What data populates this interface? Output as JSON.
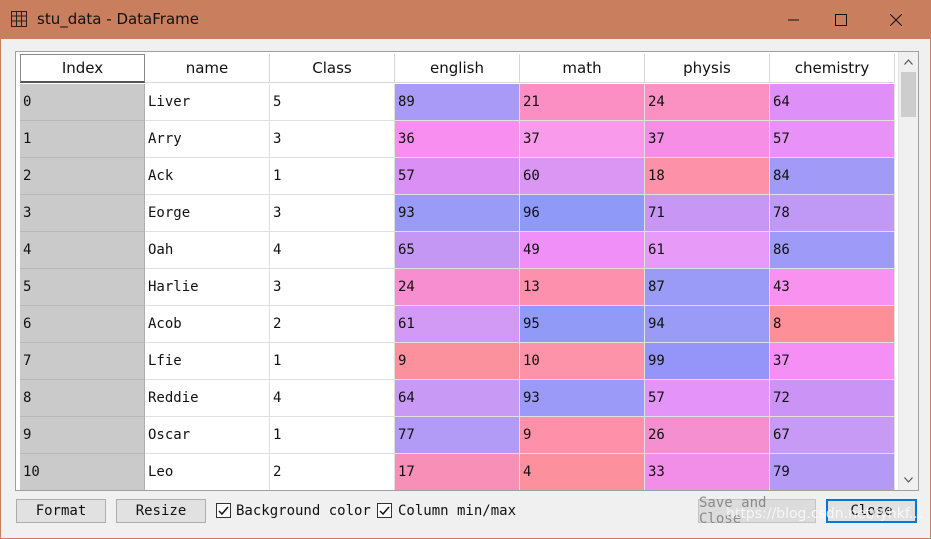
{
  "window": {
    "title": "stu_data - DataFrame",
    "title_bar_color": "#c97f5e"
  },
  "table": {
    "headers": [
      "Index",
      "name",
      "Class",
      "english",
      "math",
      "physis",
      "chemistry"
    ],
    "rows": [
      {
        "index": "0",
        "name": "Liver",
        "class": "5",
        "english": "89",
        "math": "21",
        "physis": "24",
        "chemistry": "64"
      },
      {
        "index": "1",
        "name": "Arry",
        "class": "3",
        "english": "36",
        "math": "37",
        "physis": "37",
        "chemistry": "57"
      },
      {
        "index": "2",
        "name": "Ack",
        "class": "1",
        "english": "57",
        "math": "60",
        "physis": "18",
        "chemistry": "84"
      },
      {
        "index": "3",
        "name": "Eorge",
        "class": "3",
        "english": "93",
        "math": "96",
        "physis": "71",
        "chemistry": "78"
      },
      {
        "index": "4",
        "name": "Oah",
        "class": "4",
        "english": "65",
        "math": "49",
        "physis": "61",
        "chemistry": "86"
      },
      {
        "index": "5",
        "name": "Harlie",
        "class": "3",
        "english": "24",
        "math": "13",
        "physis": "87",
        "chemistry": "43"
      },
      {
        "index": "6",
        "name": "Acob",
        "class": "2",
        "english": "61",
        "math": "95",
        "physis": "94",
        "chemistry": "8"
      },
      {
        "index": "7",
        "name": "Lfie",
        "class": "1",
        "english": "9",
        "math": "10",
        "physis": "99",
        "chemistry": "37"
      },
      {
        "index": "8",
        "name": "Reddie",
        "class": "4",
        "english": "64",
        "math": "93",
        "physis": "57",
        "chemistry": "72"
      },
      {
        "index": "9",
        "name": "Oscar",
        "class": "1",
        "english": "77",
        "math": "9",
        "physis": "26",
        "chemistry": "67"
      },
      {
        "index": "10",
        "name": "Leo",
        "class": "2",
        "english": "17",
        "math": "4",
        "physis": "33",
        "chemistry": "79"
      }
    ],
    "cell_colors": {
      "english": [
        "#a99af7",
        "#f78ef0",
        "#d98ff3",
        "#9a9af7",
        "#c497f5",
        "#f78ecf",
        "#d29af4",
        "#fc919e",
        "#c99af5",
        "#b29af7",
        "#f88fb7"
      ],
      "math": [
        "#fb8fc4",
        "#f99aea",
        "#da96f2",
        "#8f9af8",
        "#f08ff8",
        "#fc90ad",
        "#929af8",
        "#fd93a9",
        "#9b9af8",
        "#fe91a9",
        "#fd909d"
      ],
      "physis": [
        "#fb90c2",
        "#f68ee6",
        "#fd91a8",
        "#c897f5",
        "#e79af7",
        "#9a9af7",
        "#9a9af7",
        "#9594f8",
        "#e493f8",
        "#f68fd0",
        "#f38ee8"
      ],
      "chemistry": [
        "#de8ff8",
        "#e891f8",
        "#a29af7",
        "#c099f7",
        "#9d9af8",
        "#f891f0",
        "#fd8f98",
        "#f68ff5",
        "#ca93f5",
        "#c69af5",
        "#b599f7"
      ]
    },
    "index_col_bg": "#cacaca"
  },
  "footer": {
    "format_label": "Format",
    "resize_label": "Resize",
    "bg_color_label": "Background color",
    "bg_color_checked": true,
    "col_minmax_label": "Column min/max",
    "col_minmax_checked": true,
    "save_close_label": "Save and Close",
    "close_label": "Close",
    "watermark": "https://blog.csdn.net/lyhkf..."
  }
}
